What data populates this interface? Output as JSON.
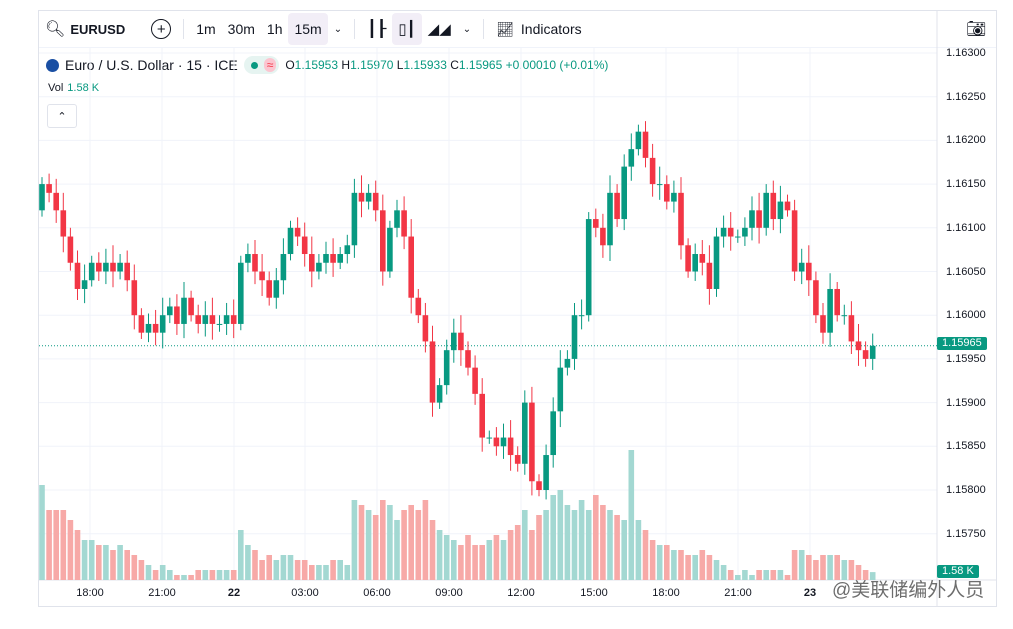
{
  "toolbar": {
    "symbol": "EURUSD",
    "intervals": [
      "1m",
      "30m",
      "1h",
      "15m"
    ],
    "active_interval": "15m",
    "indicators": "Indicators"
  },
  "legend": {
    "title": "Euro / U.S. Dollar · 15 · ICE",
    "o_label": "O",
    "o": "1.15953",
    "h_label": "H",
    "h": "1.15970",
    "l_label": "L",
    "l": "1.15933",
    "c_label": "C",
    "c": "1.15965",
    "change": "+0.00010 (+0.01%)",
    "vol_label": "Vol",
    "vol": "1.58 K"
  },
  "price_axis": {
    "labels": [
      "1.16300",
      "1.16250",
      "1.16200",
      "1.16150",
      "1.16100",
      "1.16050",
      "1.16000",
      "1.15950",
      "1.15900",
      "1.15850",
      "1.15800",
      "1.15750"
    ],
    "current_price": "1.15965",
    "current_volume": "1.58 K"
  },
  "time_axis": {
    "labels": [
      "18:00",
      "21:00",
      "22",
      "03:00",
      "06:00",
      "09:00",
      "12:00",
      "15:00",
      "18:00",
      "21:00",
      "23"
    ]
  },
  "watermark": "@美联储编外人员",
  "colors": {
    "up": "#089981",
    "down": "#f23645",
    "vol_up": "#a3d8d2",
    "vol_down": "#f7a9a7"
  },
  "chart_data": {
    "type": "candlestick",
    "title": "Euro / U.S. Dollar · 15 · ICE",
    "ylim": [
      1.1575,
      1.163
    ],
    "closes": [
      1.1615,
      1.1614,
      1.1612,
      1.1609,
      1.1606,
      1.1603,
      1.1604,
      1.1606,
      1.1605,
      1.1606,
      1.1605,
      1.1606,
      1.1604,
      1.16,
      1.1598,
      1.1599,
      1.1598,
      1.16,
      1.1601,
      1.1599,
      1.1602,
      1.16,
      1.1599,
      1.16,
      1.1599,
      1.1599,
      1.16,
      1.1599,
      1.1606,
      1.1607,
      1.1605,
      1.1604,
      1.1602,
      1.1604,
      1.1607,
      1.161,
      1.1609,
      1.1607,
      1.1605,
      1.1606,
      1.1607,
      1.1606,
      1.1607,
      1.1608,
      1.1614,
      1.1613,
      1.1614,
      1.1612,
      1.1605,
      1.161,
      1.1612,
      1.1609,
      1.1602,
      1.16,
      1.1597,
      1.159,
      1.1592,
      1.1596,
      1.1598,
      1.1596,
      1.1594,
      1.1591,
      1.1586,
      1.1586,
      1.1585,
      1.1586,
      1.1584,
      1.1583,
      1.159,
      1.1581,
      1.158,
      1.1584,
      1.1589,
      1.1594,
      1.1595,
      1.16,
      1.16,
      1.1611,
      1.161,
      1.1608,
      1.1614,
      1.1611,
      1.1617,
      1.1619,
      1.1621,
      1.1618,
      1.1615,
      1.1615,
      1.1613,
      1.1614,
      1.1608,
      1.1605,
      1.1607,
      1.1606,
      1.1603,
      1.1609,
      1.161,
      1.1609,
      1.1609,
      1.161,
      1.1612,
      1.161,
      1.1614,
      1.1611,
      1.1613,
      1.1612,
      1.1605,
      1.1606,
      1.1604,
      1.16,
      1.1598,
      1.1603,
      1.16,
      1.16,
      1.1597,
      1.1596,
      1.1595,
      1.15965
    ],
    "first_open": 1.1612,
    "volumes_k": [
      19,
      14,
      14,
      14,
      12,
      10,
      8,
      8,
      7,
      7,
      6,
      7,
      6,
      5,
      4,
      3,
      2,
      3,
      2,
      1,
      1,
      1,
      2,
      2,
      2,
      2,
      2,
      2,
      10,
      7,
      6,
      4,
      5,
      4,
      5,
      5,
      4,
      4,
      3,
      3,
      3,
      4,
      4,
      3,
      16,
      15,
      14,
      13,
      16,
      15,
      12,
      14,
      15,
      14,
      16,
      12,
      10,
      9,
      8,
      7,
      9,
      7,
      7,
      8,
      9,
      8,
      10,
      11,
      14,
      10,
      13,
      14,
      17,
      18,
      15,
      14,
      16,
      14,
      17,
      15,
      14,
      13,
      12,
      26,
      12,
      10,
      8,
      7,
      7,
      6,
      6,
      5,
      5,
      6,
      5,
      4,
      3,
      2,
      1,
      2,
      1,
      2,
      2,
      2,
      2,
      1,
      6,
      6,
      5,
      4,
      5,
      5,
      5,
      4,
      4,
      3,
      2,
      1.58
    ]
  }
}
